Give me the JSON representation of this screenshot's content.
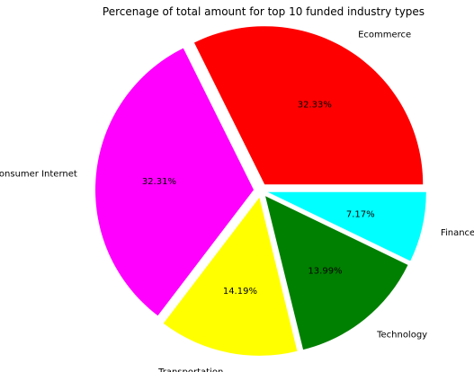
{
  "chart_data": {
    "type": "pie",
    "title": "Percenage of total amount for top 10 funded industry types",
    "slices": [
      {
        "label": "Ecommerce",
        "value": 32.33,
        "pct_label": "32.33%",
        "color": "#ff0000"
      },
      {
        "label": "Consumer Internet",
        "value": 32.31,
        "pct_label": "32.31%",
        "color": "#ff00ff"
      },
      {
        "label": "Transportation",
        "value": 14.19,
        "pct_label": "14.19%",
        "color": "#ffff00"
      },
      {
        "label": "Technology",
        "value": 13.99,
        "pct_label": "13.99%",
        "color": "#008000"
      },
      {
        "label": "Finance",
        "value": 7.17,
        "pct_label": "7.17%",
        "color": "#00ffff"
      }
    ],
    "start_angle": 0,
    "direction": "counterclockwise",
    "exploded": true,
    "legend": "none"
  }
}
